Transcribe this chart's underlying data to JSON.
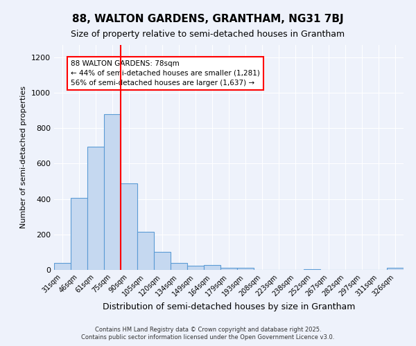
{
  "title1": "88, WALTON GARDENS, GRANTHAM, NG31 7BJ",
  "title2": "Size of property relative to semi-detached houses in Grantham",
  "xlabel": "Distribution of semi-detached houses by size in Grantham",
  "ylabel": "Number of semi-detached properties",
  "categories": [
    "31sqm",
    "46sqm",
    "61sqm",
    "75sqm",
    "90sqm",
    "105sqm",
    "120sqm",
    "134sqm",
    "149sqm",
    "164sqm",
    "179sqm",
    "193sqm",
    "208sqm",
    "223sqm",
    "238sqm",
    "252sqm",
    "267sqm",
    "282sqm",
    "297sqm",
    "311sqm",
    "326sqm"
  ],
  "values": [
    40,
    405,
    695,
    880,
    490,
    215,
    100,
    40,
    25,
    27,
    10,
    10,
    0,
    0,
    0,
    5,
    0,
    0,
    0,
    0,
    10
  ],
  "bar_color": "#c5d8f0",
  "bar_edge_color": "#5b9bd5",
  "vline_x": 3.5,
  "vline_color": "red",
  "annotation_title": "88 WALTON GARDENS: 78sqm",
  "annotation_line2": "← 44% of semi-detached houses are smaller (1,281)",
  "annotation_line3": "56% of semi-detached houses are larger (1,637) →",
  "annotation_box_color": "white",
  "annotation_box_edge": "red",
  "ylim": [
    0,
    1270
  ],
  "yticks": [
    0,
    200,
    400,
    600,
    800,
    1000,
    1200
  ],
  "footer1": "Contains HM Land Registry data © Crown copyright and database right 2025.",
  "footer2": "Contains public sector information licensed under the Open Government Licence v3.0.",
  "bg_color": "#eef2fb",
  "plot_bg_color": "#eef2fb",
  "title_fontsize": 11,
  "subtitle_fontsize": 9,
  "grid_color": "#ffffff"
}
